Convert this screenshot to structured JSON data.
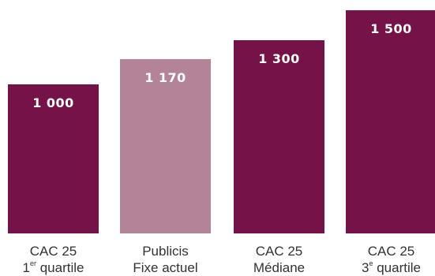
{
  "chart_data": {
    "type": "bar",
    "ylim": [
      0,
      1500
    ],
    "grid": false,
    "bars": [
      {
        "value": 1000,
        "value_label": "1 000",
        "line1": "CAC 25",
        "line2_prefix": "1",
        "line2_sup": "er",
        "line2_suffix": " quartile",
        "color": "#751247"
      },
      {
        "value": 1170,
        "value_label": "1 170",
        "line1": "Publicis",
        "line2_prefix": "Fixe actuel",
        "line2_sup": "",
        "line2_suffix": "",
        "color": "#b38397"
      },
      {
        "value": 1300,
        "value_label": "1 300",
        "line1": "CAC 25",
        "line2_prefix": "Médiane",
        "line2_sup": "",
        "line2_suffix": "",
        "color": "#751247"
      },
      {
        "value": 1500,
        "value_label": "1 500",
        "line1": "CAC 25",
        "line2_prefix": "3",
        "line2_sup": "e",
        "line2_suffix": " quartile",
        "color": "#751247"
      }
    ]
  }
}
